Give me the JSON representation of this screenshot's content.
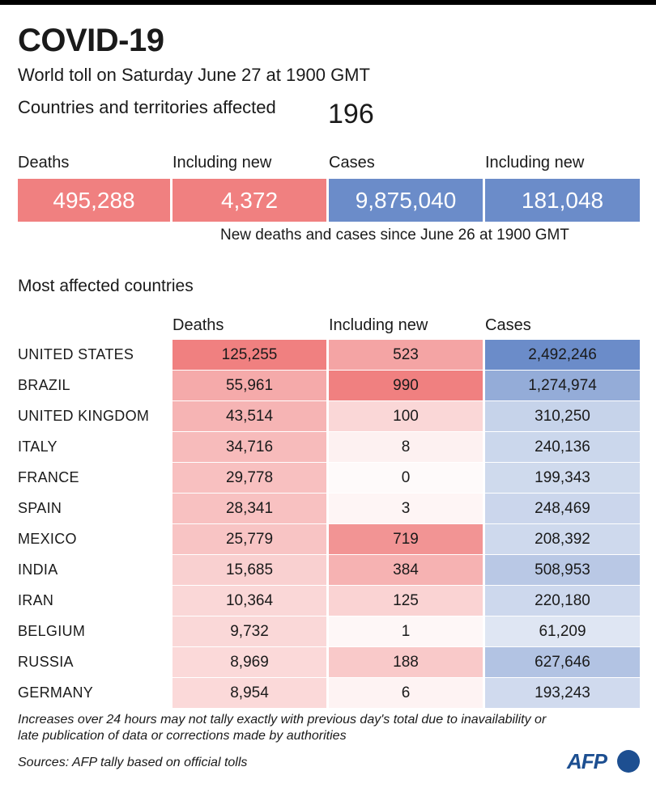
{
  "title": "COVID-19",
  "subtitle": "World toll on Saturday June 27 at 1900 GMT",
  "affected": {
    "label": "Countries and territories affected",
    "value": "196"
  },
  "summary": {
    "deaths": {
      "label": "Deaths",
      "value": "495,288"
    },
    "deaths_new": {
      "label": "Including new",
      "value": "4,372"
    },
    "cases": {
      "label": "Cases",
      "value": "9,875,040"
    },
    "cases_new": {
      "label": "Including new",
      "value": "181,048"
    },
    "note": "New deaths and cases since June 26 at 1900 GMT"
  },
  "colors": {
    "deaths": "#f08080",
    "cases": "#6b8cc9",
    "white": "#ffffff"
  },
  "chart_data": {
    "type": "table",
    "title": "Most affected countries",
    "columns": [
      "Deaths",
      "Including new",
      "Cases"
    ],
    "rows": [
      {
        "country": "UNITED STATES",
        "deaths": 125255,
        "deaths_label": "125,255",
        "new": 523,
        "new_label": "523",
        "cases": 2492246,
        "cases_label": "2,492,246"
      },
      {
        "country": "BRAZIL",
        "deaths": 55961,
        "deaths_label": "55,961",
        "new": 990,
        "new_label": "990",
        "cases": 1274974,
        "cases_label": "1,274,974"
      },
      {
        "country": "UNITED KINGDOM",
        "deaths": 43514,
        "deaths_label": "43,514",
        "new": 100,
        "new_label": "100",
        "cases": 310250,
        "cases_label": "310,250"
      },
      {
        "country": "ITALY",
        "deaths": 34716,
        "deaths_label": "34,716",
        "new": 8,
        "new_label": "8",
        "cases": 240136,
        "cases_label": "240,136"
      },
      {
        "country": "FRANCE",
        "deaths": 29778,
        "deaths_label": "29,778",
        "new": 0,
        "new_label": "0",
        "cases": 199343,
        "cases_label": "199,343"
      },
      {
        "country": "SPAIN",
        "deaths": 28341,
        "deaths_label": "28,341",
        "new": 3,
        "new_label": "3",
        "cases": 248469,
        "cases_label": "248,469"
      },
      {
        "country": "MEXICO",
        "deaths": 25779,
        "deaths_label": "25,779",
        "new": 719,
        "new_label": "719",
        "cases": 208392,
        "cases_label": "208,392"
      },
      {
        "country": "INDIA",
        "deaths": 15685,
        "deaths_label": "15,685",
        "new": 384,
        "new_label": "384",
        "cases": 508953,
        "cases_label": "508,953"
      },
      {
        "country": "IRAN",
        "deaths": 10364,
        "deaths_label": "10,364",
        "new": 125,
        "new_label": "125",
        "cases": 220180,
        "cases_label": "220,180"
      },
      {
        "country": "BELGIUM",
        "deaths": 9732,
        "deaths_label": "9,732",
        "new": 1,
        "new_label": "1",
        "cases": 61209,
        "cases_label": "61,209"
      },
      {
        "country": "RUSSIA",
        "deaths": 8969,
        "deaths_label": "8,969",
        "new": 188,
        "new_label": "188",
        "cases": 627646,
        "cases_label": "627,646"
      },
      {
        "country": "GERMANY",
        "deaths": 8954,
        "deaths_label": "8,954",
        "new": 6,
        "new_label": "6",
        "cases": 193243,
        "cases_label": "193,243"
      }
    ]
  },
  "footnote": "Increases over 24 hours may not tally exactly with previous day's total due to inavailability or late publication of data or corrections made by authorities",
  "sources": "Sources: AFP tally based on official tolls",
  "logo_text": "AFP"
}
